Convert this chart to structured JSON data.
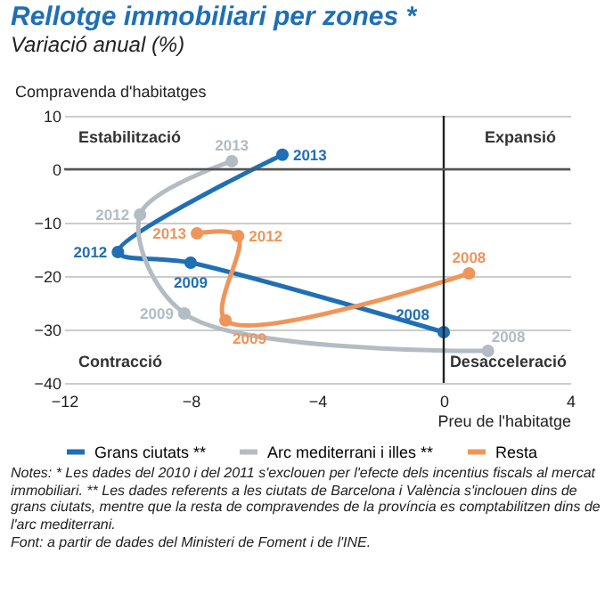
{
  "chart_data": {
    "type": "line",
    "title": "Rellotge immobiliari per zones *",
    "subtitle": "Variació anual (%)",
    "xlabel": "Preu de l'habitatge",
    "ylabel": "Compravenda d'habitatges",
    "xlim": [
      -12,
      4
    ],
    "xticks": [
      -12,
      -8,
      -4,
      0,
      4
    ],
    "ylim": [
      -40,
      10
    ],
    "yticks": [
      -40,
      -30,
      -20,
      -10,
      0,
      10
    ],
    "grid": "y",
    "legend": "bottom",
    "marker": "circle",
    "line_style": "solid",
    "series": [
      {
        "name": "Grans ciutats **",
        "color": "#1f6fb5",
        "x": [
          0,
          -8,
          -10.3,
          -5.1
        ],
        "values": [
          -30.5,
          -17.5,
          -15.5,
          2.7
        ]
      },
      {
        "name": "Arc mediterrani i illes **",
        "color": "#b4bcc3",
        "x": [
          1.4,
          -8.2,
          -9.6,
          -6.7
        ],
        "values": [
          -34,
          -27,
          -8.5,
          1.5
        ]
      },
      {
        "name": "Resta",
        "color": "#f0955a",
        "x": [
          0.8,
          -6.9,
          -6.5,
          -7.8
        ],
        "values": [
          -19.5,
          -28.3,
          -12.5,
          -12
        ]
      }
    ],
    "ref_lines": [
      {
        "axis": "x",
        "value": 0,
        "color": "#222222"
      },
      {
        "axis": "y",
        "value": 0,
        "color": "#555555"
      }
    ],
    "annotations": [
      "Estabilització",
      "Expansió",
      "Contracció",
      "Desacceleració",
      {
        "text": "2008",
        "x": 0,
        "y": -30.5
      },
      {
        "text": "2009",
        "x": -8,
        "y": -17.5
      },
      {
        "text": "2012",
        "x": -10.3,
        "y": -15.5
      },
      {
        "text": "2013",
        "x": -5.1,
        "y": 2.7
      },
      {
        "text": "2008",
        "x": 1.4,
        "y": -34
      },
      {
        "text": "2009",
        "x": -8.2,
        "y": -27
      },
      {
        "text": "2012",
        "x": -9.6,
        "y": -8.5
      },
      {
        "text": "2013",
        "x": -6.7,
        "y": 1.5
      },
      {
        "text": "2008",
        "x": 0.8,
        "y": -19.5
      },
      {
        "text": "2009",
        "x": -6.9,
        "y": -28.3
      },
      {
        "text": "2012",
        "x": -6.5,
        "y": -12.5
      },
      {
        "text": "2013",
        "x": -7.8,
        "y": -12
      },
      "Notes: * Les dades del 2010 i del 2011 s'exclouen per l'efecte dels incentius fiscals al mercat immobiliari.  ** Les dades referents a les ciutats de Barcelona i València s'inclouen dins de grans ciutats, mentre que la resta de compravendes de la província es comptabilitzen dins de l'arc mediterrani.",
      "Font: a partir de dades del Ministeri de Foment i de l'INE."
    ]
  }
}
